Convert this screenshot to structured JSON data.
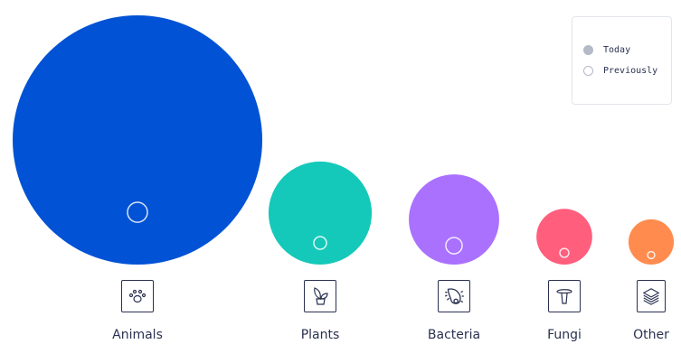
{
  "chart_data": {
    "type": "bubble",
    "categories": [
      "Animals",
      "Plants",
      "Bacteria",
      "Fungi",
      "Other"
    ],
    "series": [
      {
        "name": "Today",
        "values": [
          100,
          17.1,
          13.1,
          5.0,
          3.3
        ]
      },
      {
        "name": "Previously",
        "values": [
          0.64,
          0.26,
          0.43,
          0.13,
          0.08
        ]
      }
    ],
    "colors": [
      "#0152d4",
      "#14c9b9",
      "#aa71ff",
      "#ff5e7d",
      "#ff8b4e"
    ],
    "icons": [
      "paw-icon",
      "plant-icon",
      "bacteria-icon",
      "mushroom-icon",
      "layers-icon"
    ],
    "legend": {
      "placement": "top-right",
      "items": [
        {
          "label": "Today",
          "color": "#b4bac6"
        },
        {
          "label": "Previously",
          "color": "#ffffff"
        }
      ]
    }
  }
}
